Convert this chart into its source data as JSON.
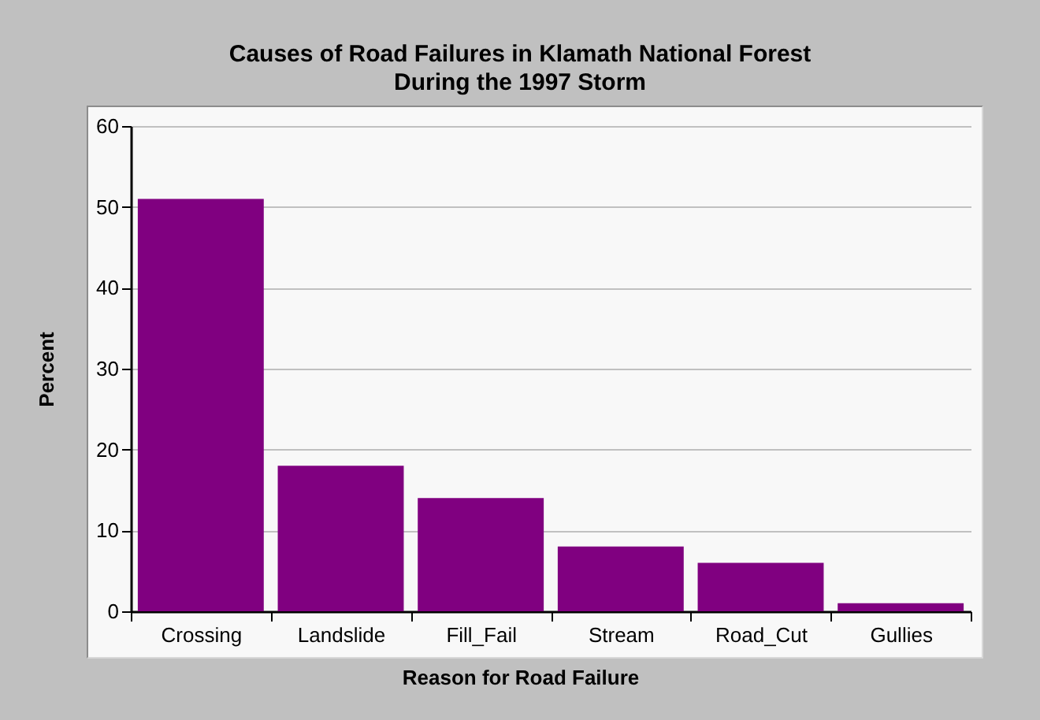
{
  "chart_data": {
    "type": "bar",
    "title": "Causes of Road Failures in Klamath National Forest\nDuring the 1997 Storm",
    "xlabel": "Reason for Road Failure",
    "ylabel": "Percent",
    "categories": [
      "Crossing",
      "Landslide",
      "Fill_Fail",
      "Stream",
      "Road_Cut",
      "Gullies"
    ],
    "values": [
      51,
      18,
      14,
      8,
      6,
      1
    ],
    "color": "#800080",
    "ylim": [
      0,
      60
    ],
    "yticks": [
      0,
      10,
      20,
      30,
      40,
      50,
      60
    ],
    "grid": "y"
  }
}
